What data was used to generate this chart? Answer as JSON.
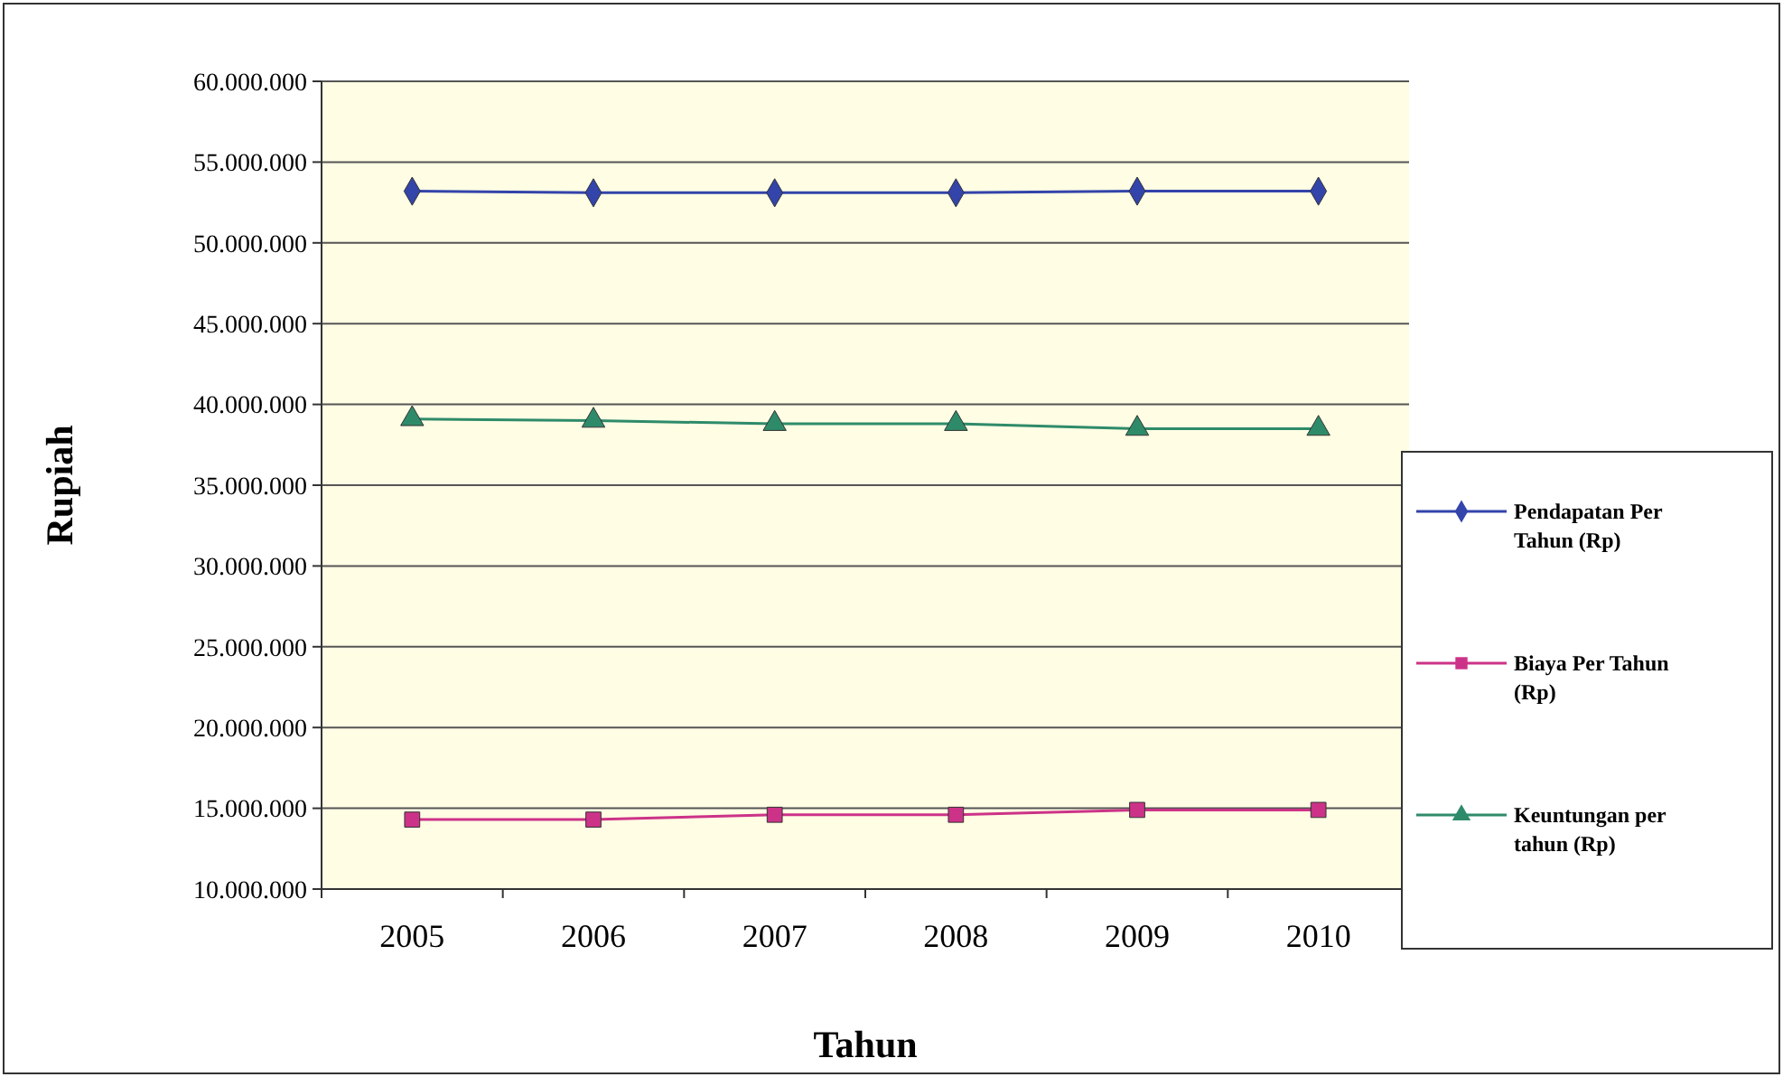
{
  "chart_data": {
    "type": "line",
    "xlabel": "Tahun",
    "ylabel": "Rupiah",
    "categories": [
      "2005",
      "2006",
      "2007",
      "2008",
      "2009",
      "2010"
    ],
    "series": [
      {
        "name": "Pendapatan Per Tahun (Rp)",
        "color": "#3344aa",
        "marker": "diamond",
        "values": [
          53200000,
          53100000,
          53100000,
          53100000,
          53200000,
          53200000
        ]
      },
      {
        "name": "Biaya Per Tahun (Rp)",
        "color": "#cc3388",
        "marker": "square",
        "values": [
          14300000,
          14300000,
          14600000,
          14600000,
          14900000,
          14900000
        ]
      },
      {
        "name": "Keuntungan per tahun (Rp)",
        "color": "#2e8b6a",
        "marker": "triangle",
        "values": [
          39100000,
          39000000,
          38800000,
          38800000,
          38500000,
          38500000
        ]
      }
    ],
    "ylim": [
      10000000,
      60000000
    ],
    "yticks": [
      {
        "value": 10000000,
        "label": "10.000.000"
      },
      {
        "value": 15000000,
        "label": "15.000.000"
      },
      {
        "value": 20000000,
        "label": "20.000.000"
      },
      {
        "value": 25000000,
        "label": "25.000.000"
      },
      {
        "value": 30000000,
        "label": "30.000.000"
      },
      {
        "value": 35000000,
        "label": "35.000.000"
      },
      {
        "value": 40000000,
        "label": "40.000.000"
      },
      {
        "value": 45000000,
        "label": "45.000.000"
      },
      {
        "value": 50000000,
        "label": "50.000.000"
      },
      {
        "value": 55000000,
        "label": "55.000.000"
      },
      {
        "value": 60000000,
        "label": "60.000.000"
      }
    ],
    "grid": "y",
    "legend": "right"
  }
}
